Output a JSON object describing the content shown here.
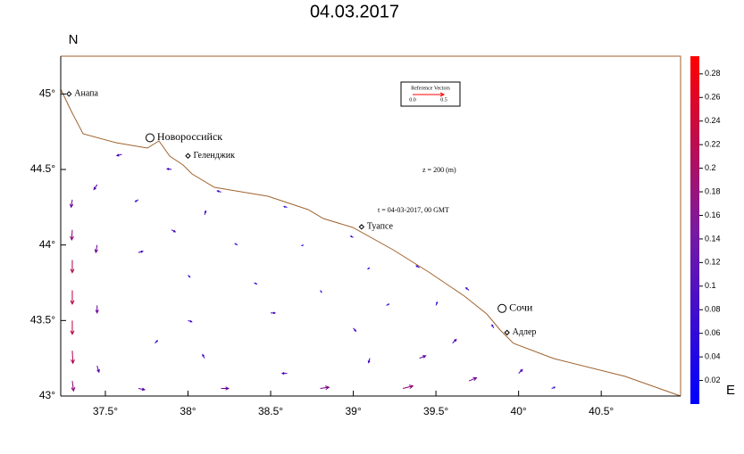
{
  "chart_data": {
    "type": "vector_field",
    "title": "04.03.2017",
    "x_label": "E",
    "y_label": "N",
    "depth_label": "z = 200 (m)",
    "time_label": "t = 04-03-2017, 00 GMT",
    "xlim": [
      37.23,
      40.98
    ],
    "ylim": [
      43,
      45.25
    ],
    "xticks": [
      {
        "value": 37.5,
        "label": "37.5°"
      },
      {
        "value": 38,
        "label": "38°"
      },
      {
        "value": 38.5,
        "label": "38.5°"
      },
      {
        "value": 39,
        "label": "39°"
      },
      {
        "value": 39.5,
        "label": "39.5°"
      },
      {
        "value": 40,
        "label": "40°"
      },
      {
        "value": 40.5,
        "label": "40.5°"
      }
    ],
    "yticks": [
      {
        "value": 43,
        "label": "43°"
      },
      {
        "value": 43.5,
        "label": "43.5°"
      },
      {
        "value": 44,
        "label": "44°"
      },
      {
        "value": 44.5,
        "label": "44.5°"
      },
      {
        "value": 45,
        "label": "45°"
      }
    ],
    "clim": [
      0,
      0.295
    ],
    "cticks": [
      0.02,
      0.04,
      0.06,
      0.08,
      0.1,
      0.12,
      0.14,
      0.16,
      0.18,
      0.2,
      0.22,
      0.24,
      0.26,
      0.28
    ],
    "reference_vector": {
      "label": "Reference Vectors",
      "ticks": [
        {
          "value": 0,
          "label": "0.0"
        },
        {
          "value": 0.5,
          "label": "0.5"
        }
      ]
    },
    "cities": [
      {
        "name": "Анапа",
        "lon": 37.28,
        "lat": 45.0,
        "marker": "diamond"
      },
      {
        "name": "Новороссийск",
        "lon": 37.77,
        "lat": 44.71,
        "marker": "circle"
      },
      {
        "name": "Геленджик",
        "lon": 38.0,
        "lat": 44.59,
        "marker": "diamond"
      },
      {
        "name": "Туапсе",
        "lon": 39.05,
        "lat": 44.12,
        "marker": "diamond"
      },
      {
        "name": "Сочи",
        "lon": 39.9,
        "lat": 43.58,
        "marker": "circle"
      },
      {
        "name": "Адлер",
        "lon": 39.93,
        "lat": 43.42,
        "marker": "diamond"
      }
    ],
    "vectors": [
      [
        37.3,
        44.3,
        -0.02,
        -0.12
      ],
      [
        37.3,
        44.1,
        -0.01,
        -0.16
      ],
      [
        37.3,
        43.9,
        0,
        -0.2
      ],
      [
        37.3,
        43.7,
        0,
        -0.22
      ],
      [
        37.3,
        43.5,
        0,
        -0.22
      ],
      [
        37.3,
        43.3,
        0.01,
        -0.2
      ],
      [
        37.3,
        43.1,
        0.02,
        -0.16
      ],
      [
        37.45,
        44.4,
        -0.05,
        -0.08
      ],
      [
        37.45,
        44.0,
        -0.02,
        -0.12
      ],
      [
        37.45,
        43.6,
        0,
        -0.12
      ],
      [
        37.45,
        43.2,
        0.03,
        -0.1
      ],
      [
        37.6,
        44.6,
        -0.08,
        -0.02
      ],
      [
        37.9,
        44.5,
        -0.07,
        0.01
      ],
      [
        38.2,
        44.35,
        -0.06,
        0.02
      ],
      [
        38.6,
        44.25,
        -0.05,
        0.01
      ],
      [
        39.0,
        44.05,
        -0.04,
        0.02
      ],
      [
        39.4,
        43.85,
        -0.05,
        0.03
      ],
      [
        39.7,
        43.7,
        -0.05,
        0.04
      ],
      [
        39.85,
        43.45,
        -0.03,
        0.05
      ],
      [
        37.7,
        44.3,
        -0.05,
        -0.03
      ],
      [
        37.9,
        44.1,
        0.06,
        -0.03
      ],
      [
        37.7,
        43.95,
        0.07,
        0.02
      ],
      [
        38.1,
        44.2,
        0.02,
        0.06
      ],
      [
        38.3,
        44.0,
        -0.04,
        0.02
      ],
      [
        38.7,
        44.0,
        -0.03,
        -0.01
      ],
      [
        39.1,
        43.85,
        -0.03,
        -0.02
      ],
      [
        38.0,
        43.8,
        0.03,
        -0.03
      ],
      [
        38.4,
        43.75,
        0.04,
        -0.02
      ],
      [
        38.8,
        43.7,
        0.02,
        -0.03
      ],
      [
        39.2,
        43.6,
        0.04,
        0.02
      ],
      [
        39.5,
        43.6,
        0.02,
        0.05
      ],
      [
        38.0,
        43.5,
        0.06,
        -0.02
      ],
      [
        38.5,
        43.55,
        0.07,
        0.0
      ],
      [
        39.0,
        43.45,
        0.04,
        -0.05
      ],
      [
        39.1,
        43.25,
        -0.02,
        -0.07
      ],
      [
        38.6,
        43.15,
        -0.08,
        0.0
      ],
      [
        38.1,
        43.25,
        -0.03,
        0.06
      ],
      [
        37.8,
        43.35,
        0.04,
        0.04
      ],
      [
        37.7,
        43.05,
        0.1,
        -0.02
      ],
      [
        38.2,
        43.05,
        0.12,
        0.0
      ],
      [
        38.8,
        43.05,
        0.14,
        0.02
      ],
      [
        39.3,
        43.05,
        0.16,
        0.04
      ],
      [
        39.7,
        43.1,
        0.12,
        0.05
      ],
      [
        40.0,
        43.15,
        0.06,
        0.06
      ],
      [
        40.2,
        43.05,
        0.05,
        0.02
      ],
      [
        39.6,
        43.35,
        0.06,
        0.06
      ],
      [
        39.4,
        43.25,
        0.1,
        0.04
      ]
    ]
  }
}
